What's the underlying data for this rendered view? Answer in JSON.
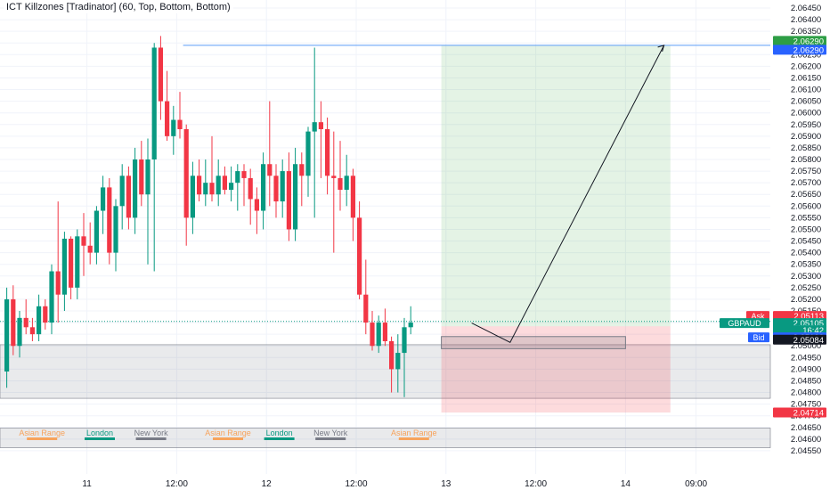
{
  "indicator": {
    "title": "ICT Killzones [Tradinator] (60, Top, Bottom, Bottom)"
  },
  "colors": {
    "up": "#089981",
    "down": "#f23645",
    "grid": "#f0f3fa",
    "axis_text": "#131722",
    "ask": "#f23645",
    "bid": "#2962ff",
    "symbol": "#089981",
    "target": "#2e9e45",
    "stop": "#f23645"
  },
  "chart_data": {
    "type": "candlestick",
    "symbol": "GBPAUD",
    "y_axis": {
      "min": 2.045,
      "max": 2.0645,
      "ticks": [
        "2.06450",
        "2.06400",
        "2.06350",
        "2.06300",
        "2.06250",
        "2.06200",
        "2.06150",
        "2.06100",
        "2.06050",
        "2.06000",
        "2.05950",
        "2.05900",
        "2.05850",
        "2.05800",
        "2.05750",
        "2.05700",
        "2.05650",
        "2.05600",
        "2.05550",
        "2.05500",
        "2.05450",
        "2.05400",
        "2.05350",
        "2.05300",
        "2.05250",
        "2.05200",
        "2.05150",
        "2.05100",
        "2.05050",
        "2.05000",
        "2.04950",
        "2.04900",
        "2.04850",
        "2.04800",
        "2.04750",
        "2.04700",
        "2.04650",
        "2.04600",
        "2.04550"
      ]
    },
    "x_axis": {
      "labels": [
        {
          "text": "11",
          "idx": 13
        },
        {
          "text": "12:00",
          "idx": 27
        },
        {
          "text": "12",
          "idx": 41
        },
        {
          "text": "12:00",
          "idx": 55
        },
        {
          "text": "13",
          "idx": 69
        },
        {
          "text": "12:00",
          "idx": 83
        },
        {
          "text": "14",
          "idx": 97
        },
        {
          "text": "09:00",
          "idx": 108
        }
      ],
      "bar_count": 124
    },
    "candles": [
      [
        2.0489,
        2.0525,
        2.0482,
        2.052
      ],
      [
        2.052,
        2.0526,
        2.0496,
        2.05
      ],
      [
        2.05,
        2.0515,
        2.0495,
        2.0512
      ],
      [
        2.0512,
        2.052,
        2.0505,
        2.0508
      ],
      [
        2.0508,
        2.0512,
        2.0502,
        2.0505
      ],
      [
        2.0505,
        2.0522,
        2.0502,
        2.0517
      ],
      [
        2.0517,
        2.052,
        2.0507,
        2.051
      ],
      [
        2.051,
        2.0535,
        2.0505,
        2.0532
      ],
      [
        2.0532,
        2.0562,
        2.051,
        2.0522
      ],
      [
        2.0522,
        2.0549,
        2.0515,
        2.0546
      ],
      [
        2.0546,
        2.0547,
        2.052,
        2.0525
      ],
      [
        2.0525,
        2.055,
        2.052,
        2.0547
      ],
      [
        2.0547,
        2.0557,
        2.053,
        2.0543
      ],
      [
        2.0543,
        2.0553,
        2.0535,
        2.054
      ],
      [
        2.054,
        2.056,
        2.0535,
        2.0558
      ],
      [
        2.0558,
        2.0573,
        2.0548,
        2.0568
      ],
      [
        2.0568,
        2.0572,
        2.0535,
        2.054
      ],
      [
        2.054,
        2.0563,
        2.0532,
        2.056
      ],
      [
        2.056,
        2.0578,
        2.055,
        2.0573
      ],
      [
        2.0573,
        2.0577,
        2.055,
        2.0555
      ],
      [
        2.0555,
        2.0585,
        2.0548,
        2.058
      ],
      [
        2.058,
        2.0588,
        2.056,
        2.0565
      ],
      [
        2.0565,
        2.0589,
        2.0535,
        2.058
      ],
      [
        2.058,
        2.063,
        2.0532,
        2.0628
      ],
      [
        2.0628,
        2.0633,
        2.0597,
        2.0605
      ],
      [
        2.0605,
        2.0618,
        2.0588,
        2.059
      ],
      [
        2.059,
        2.0603,
        2.0582,
        2.0597
      ],
      [
        2.0597,
        2.0609,
        2.0589,
        2.0593
      ],
      [
        2.0593,
        2.0595,
        2.0543,
        2.0555
      ],
      [
        2.0555,
        2.0579,
        2.0548,
        2.0573
      ],
      [
        2.0573,
        2.058,
        2.0562,
        2.0565
      ],
      [
        2.0565,
        2.058,
        2.056,
        2.057
      ],
      [
        2.057,
        2.059,
        2.0562,
        2.0565
      ],
      [
        2.0565,
        2.058,
        2.056,
        2.0573
      ],
      [
        2.0573,
        2.0577,
        2.0565,
        2.0567
      ],
      [
        2.0567,
        2.0577,
        2.0562,
        2.057
      ],
      [
        2.057,
        2.0578,
        2.0558,
        2.0575
      ],
      [
        2.0575,
        2.0578,
        2.056,
        2.0572
      ],
      [
        2.0572,
        2.0576,
        2.0552,
        2.0563
      ],
      [
        2.0563,
        2.0568,
        2.0548,
        2.0558
      ],
      [
        2.0558,
        2.0583,
        2.055,
        2.0578
      ],
      [
        2.0578,
        2.0605,
        2.056,
        2.0573
      ],
      [
        2.0573,
        2.0578,
        2.0555,
        2.0562
      ],
      [
        2.0562,
        2.058,
        2.0555,
        2.0575
      ],
      [
        2.0575,
        2.0583,
        2.0545,
        2.055
      ],
      [
        2.055,
        2.0585,
        2.0545,
        2.0578
      ],
      [
        2.0578,
        2.0583,
        2.056,
        2.0573
      ],
      [
        2.0573,
        2.0594,
        2.0564,
        2.0592
      ],
      [
        2.0592,
        2.0628,
        2.0555,
        2.0596
      ],
      [
        2.0596,
        2.0605,
        2.0572,
        2.0593
      ],
      [
        2.0593,
        2.0598,
        2.0565,
        2.0573
      ],
      [
        2.0573,
        2.0592,
        2.054,
        2.0572
      ],
      [
        2.0572,
        2.0588,
        2.0558,
        2.0567
      ],
      [
        2.0567,
        2.0582,
        2.056,
        2.0573
      ],
      [
        2.0573,
        2.0576,
        2.0545,
        2.0555
      ],
      [
        2.0555,
        2.0562,
        2.052,
        2.0522
      ],
      [
        2.0522,
        2.0537,
        2.0505,
        2.051
      ],
      [
        2.051,
        2.0515,
        2.0498,
        2.05
      ],
      [
        2.05,
        2.0513,
        2.0497,
        2.051
      ],
      [
        2.051,
        2.0516,
        2.05,
        2.0502
      ],
      [
        2.0502,
        2.0504,
        2.048,
        2.049
      ],
      [
        2.049,
        2.0505,
        2.048,
        2.0497
      ],
      [
        2.0497,
        2.0512,
        2.0478,
        2.0508
      ],
      [
        2.0508,
        2.0517,
        2.0505,
        2.051
      ]
    ],
    "lines": {
      "target": 2.0629,
      "ask": 2.05113,
      "last": 2.05105,
      "bid": 2.051,
      "entry": 2.05084,
      "stop": 2.04714
    },
    "labels": {
      "target_price": "2.06290",
      "target_price2": "2.06290",
      "ask_text": "Ask",
      "ask_price": "2.05113",
      "last_price": "2.05105",
      "countdown": "16:42",
      "bid_text": "Bid",
      "bid_price": "2.05100",
      "entry_price": "2.05084",
      "stop_price": "2.04714"
    },
    "sessions": [
      {
        "text": "Asian Range",
        "idx": 6,
        "color": "#f7a35c"
      },
      {
        "text": "London",
        "idx": 15,
        "color": "#089981"
      },
      {
        "text": "New York",
        "idx": 23,
        "color": "#787b86"
      },
      {
        "text": "Asian Range",
        "idx": 35,
        "color": "#f7a35c"
      },
      {
        "text": "London",
        "idx": 43,
        "color": "#089981"
      },
      {
        "text": "New York",
        "idx": 51,
        "color": "#787b86"
      },
      {
        "text": "Asian Range",
        "idx": 64,
        "color": "#f7a35c"
      }
    ]
  }
}
